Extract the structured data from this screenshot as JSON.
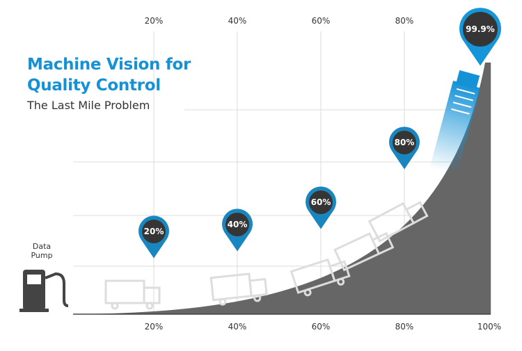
{
  "title_line1": "Machine Vision for",
  "title_line2": "Quality Control",
  "subtitle": "The Last Mile Problem",
  "top_labels": [
    "20%",
    "40%",
    "60%",
    "80%"
  ],
  "bottom_labels": [
    "20%",
    "40%",
    "60%",
    "80%",
    "100%"
  ],
  "pins": [
    {
      "label": "20%",
      "color": "#1a86bf"
    },
    {
      "label": "40%",
      "color": "#1a86bf"
    },
    {
      "label": "60%",
      "color": "#1a86bf"
    },
    {
      "label": "80%",
      "color": "#1a86bf"
    },
    {
      "label": "99.9%",
      "color": "#1596d8"
    }
  ],
  "pump_label_line1": "Data",
  "pump_label_line2": "Pump",
  "colors": {
    "accent": "#1592d6",
    "curve": "#666666",
    "pin_inner": "#353535"
  }
}
